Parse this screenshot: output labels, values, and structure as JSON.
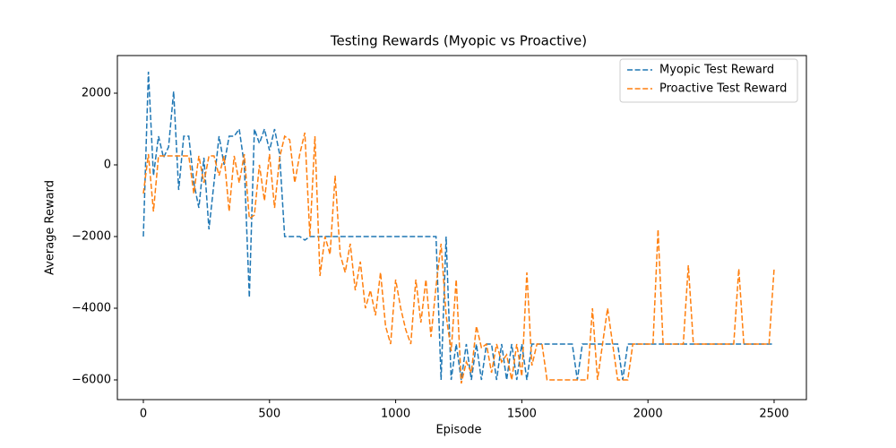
{
  "chart_data": {
    "type": "line",
    "title": "Testing Rewards (Myopic vs Proactive)",
    "x_label": "Episode",
    "y_label": "Average Reward",
    "x": [
      0,
      20,
      40,
      60,
      80,
      100,
      120,
      140,
      160,
      180,
      200,
      220,
      240,
      260,
      280,
      300,
      320,
      340,
      360,
      380,
      400,
      420,
      440,
      460,
      480,
      500,
      520,
      540,
      560,
      580,
      600,
      620,
      640,
      660,
      680,
      700,
      720,
      740,
      760,
      780,
      800,
      820,
      840,
      860,
      880,
      900,
      920,
      940,
      960,
      980,
      1000,
      1020,
      1040,
      1060,
      1080,
      1100,
      1120,
      1140,
      1160,
      1180,
      1200,
      1220,
      1240,
      1260,
      1280,
      1300,
      1320,
      1340,
      1360,
      1380,
      1400,
      1420,
      1440,
      1460,
      1480,
      1500,
      1520,
      1540,
      1560,
      1580,
      1600,
      1620,
      1640,
      1660,
      1680,
      1700,
      1720,
      1740,
      1760,
      1780,
      1800,
      1820,
      1840,
      1860,
      1880,
      1900,
      1920,
      1940,
      1960,
      1980,
      2000,
      2020,
      2040,
      2060,
      2080,
      2100,
      2120,
      2140,
      2160,
      2180,
      2200,
      2220,
      2240,
      2260,
      2280,
      2300,
      2320,
      2340,
      2360,
      2380,
      2400,
      2420,
      2440,
      2460,
      2480,
      2500
    ],
    "series": [
      {
        "name": "Myopic Test Reward",
        "color": "#1f77b4",
        "values": [
          -2000,
          2600,
          -300,
          800,
          200,
          500,
          2050,
          -700,
          800,
          800,
          -500,
          -1200,
          200,
          -1800,
          -500,
          800,
          0,
          800,
          800,
          1000,
          0,
          -3700,
          1000,
          600,
          1000,
          400,
          1000,
          300,
          -2000,
          -2000,
          -2000,
          -2000,
          -2100,
          -2000,
          -2000,
          -2000,
          -2000,
          -2000,
          -2000,
          -2000,
          -2000,
          -2000,
          -2000,
          -2000,
          -2000,
          -2000,
          -2000,
          -2000,
          -2000,
          -2000,
          -2000,
          -2000,
          -2000,
          -2000,
          -2000,
          -2000,
          -2000,
          -2000,
          -2000,
          -6000,
          -2000,
          -6000,
          -5000,
          -6000,
          -5000,
          -6000,
          -5000,
          -6000,
          -5000,
          -5000,
          -6000,
          -5000,
          -6000,
          -5000,
          -6000,
          -5000,
          -6000,
          -5000,
          -5000,
          -5000,
          -5000,
          -5000,
          -5000,
          -5000,
          -5000,
          -5000,
          -6000,
          -5000,
          -5000,
          -5000,
          -5000,
          -5000,
          -5000,
          -5000,
          -5000,
          -6000,
          -5000,
          -5000,
          -5000,
          -5000,
          -5000,
          -5000,
          -5000,
          -5000,
          -5000,
          -5000,
          -5000,
          -5000,
          -5000,
          -5000,
          -5000,
          -5000,
          -5000,
          -5000,
          -5000,
          -5000,
          -5000,
          -5000,
          -5000,
          -5000,
          -5000,
          -5000,
          -5000,
          -5000,
          -5000,
          -5000
        ]
      },
      {
        "name": "Proactive Test Reward",
        "color": "#ff7f0e",
        "values": [
          -800,
          300,
          -1300,
          250,
          250,
          250,
          250,
          250,
          250,
          250,
          -800,
          250,
          -500,
          250,
          250,
          -300,
          250,
          -1300,
          250,
          -500,
          300,
          -1500,
          -1400,
          0,
          -1000,
          300,
          -1200,
          200,
          800,
          700,
          -500,
          300,
          900,
          -2000,
          800,
          -3100,
          -2000,
          -2500,
          -300,
          -2500,
          -3000,
          -2200,
          -3500,
          -2700,
          -4000,
          -3500,
          -4200,
          -3000,
          -4500,
          -5000,
          -3200,
          -4000,
          -4600,
          -5000,
          -3200,
          -4400,
          -3200,
          -4800,
          -3400,
          -2200,
          -4200,
          -5200,
          -3200,
          -6100,
          -5500,
          -5800,
          -4500,
          -5100,
          -5000,
          -5800,
          -5000,
          -5500,
          -5300,
          -6000,
          -5000,
          -5900,
          -3000,
          -5600,
          -5000,
          -5000,
          -6000,
          -6000,
          -6000,
          -6000,
          -6000,
          -6000,
          -6000,
          -6000,
          -6000,
          -4000,
          -6000,
          -5000,
          -4000,
          -5000,
          -6000,
          -6000,
          -6000,
          -5000,
          -5000,
          -5000,
          -5000,
          -5000,
          -1800,
          -5000,
          -5000,
          -5000,
          -5000,
          -5000,
          -2800,
          -5000,
          -5000,
          -5000,
          -5000,
          -5000,
          -5000,
          -5000,
          -5000,
          -5000,
          -2900,
          -5000,
          -5000,
          -5000,
          -5000,
          -5000,
          -5000,
          -2900
        ]
      }
    ],
    "xlim": [
      -103,
      2628
    ],
    "ylim": [
      -6550,
      3050
    ],
    "xticks": [
      0,
      500,
      1000,
      1500,
      2000,
      2500
    ],
    "yticks": [
      {
        "value": -6000,
        "label": "−6000"
      },
      {
        "value": -4000,
        "label": "−4000"
      },
      {
        "value": -2000,
        "label": "−2000"
      },
      0,
      2000
    ],
    "line_style": "dashed",
    "legend": "upper right"
  }
}
